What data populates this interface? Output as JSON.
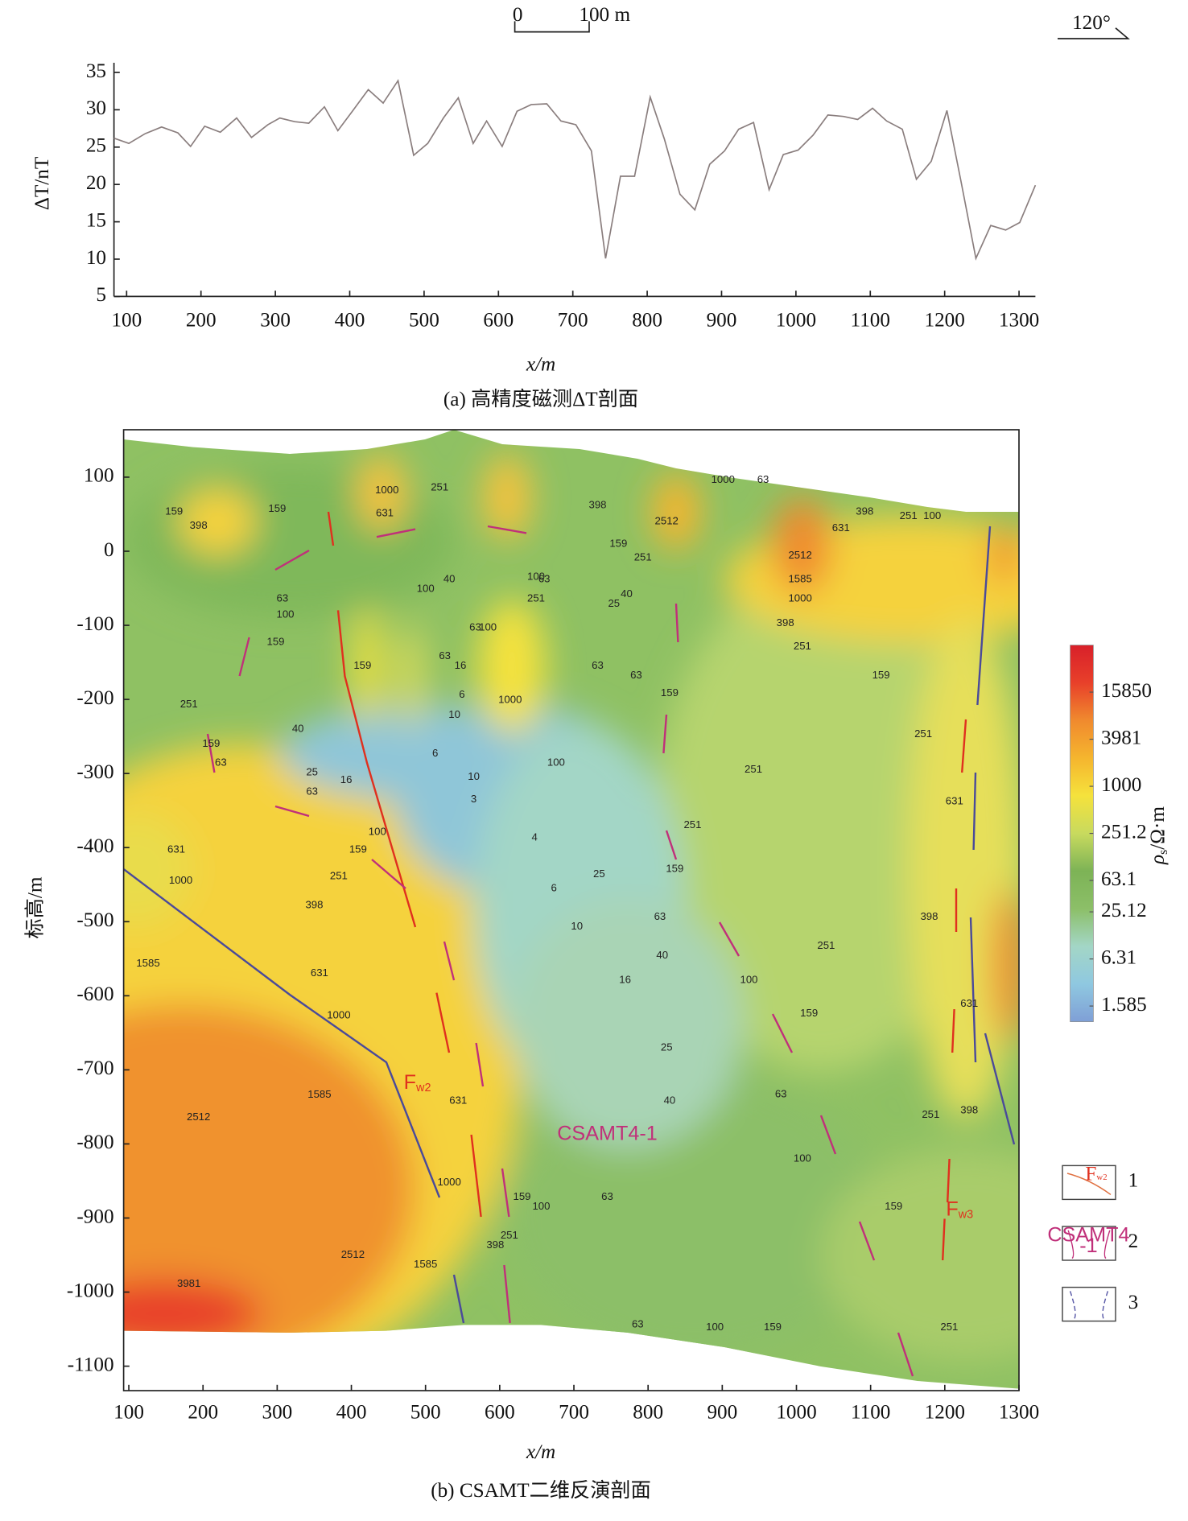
{
  "chart_data": [
    {
      "type": "line",
      "title": "(a) 高精度磁测ΔT剖面",
      "xlabel": "x/m",
      "ylabel": "ΔT/nT",
      "scale_bar": {
        "length": 100,
        "labels": [
          "0",
          "100 m"
        ]
      },
      "orientation_label": "120°",
      "color": "#8a7e7e",
      "xlim": [
        83,
        1322
      ],
      "ylim": [
        5,
        35
      ],
      "xticks": [
        100,
        200,
        300,
        400,
        500,
        600,
        700,
        800,
        900,
        1000,
        1100,
        1200,
        1300
      ],
      "yticks": [
        5,
        10,
        15,
        20,
        25,
        30,
        35
      ],
      "x": [
        83,
        103,
        125,
        147,
        169,
        186,
        205,
        226,
        248,
        268,
        290,
        306,
        326,
        345,
        366,
        384,
        405,
        425,
        445,
        465,
        486,
        505,
        526,
        546,
        566,
        584,
        605,
        625,
        644,
        665,
        684,
        704,
        725,
        744,
        764,
        783,
        804,
        823,
        844,
        864,
        884,
        904,
        923,
        943,
        964,
        983,
        1003,
        1023,
        1043,
        1064,
        1083,
        1103,
        1122,
        1143,
        1162,
        1182,
        1203,
        1222,
        1242,
        1262,
        1282,
        1301,
        1322
      ],
      "values": [
        26.2,
        25.5,
        26.8,
        27.7,
        26.9,
        25.1,
        27.8,
        27.0,
        28.9,
        26.3,
        28.0,
        28.9,
        28.4,
        28.2,
        30.4,
        27.2,
        30.0,
        32.7,
        30.9,
        33.9,
        23.9,
        25.5,
        28.9,
        31.6,
        25.5,
        28.5,
        25.1,
        29.8,
        30.7,
        30.8,
        28.5,
        28.0,
        24.5,
        10.1,
        21.1,
        21.1,
        31.7,
        26.1,
        18.7,
        16.6,
        22.7,
        24.5,
        27.4,
        28.3,
        19.3,
        24.0,
        24.6,
        26.6,
        29.3,
        29.1,
        28.7,
        30.2,
        28.5,
        27.4,
        20.7,
        23.1,
        29.9,
        20.4,
        10.1,
        14.5,
        13.9,
        14.9,
        19.9
      ]
    },
    {
      "type": "contour",
      "title": "(b) CSAMT二维反演剖面",
      "xlabel": "x/m",
      "ylabel": "标高/m",
      "xlim": [
        93,
        1300
      ],
      "ylim": [
        -1133,
        164
      ],
      "xticks": [
        100,
        200,
        300,
        400,
        500,
        600,
        700,
        800,
        900,
        1000,
        1100,
        1200,
        1300
      ],
      "yticks": [
        100,
        0,
        -100,
        -200,
        -300,
        -400,
        -500,
        -600,
        -700,
        -800,
        -900,
        -1000,
        -1100
      ],
      "colorbar": {
        "label": {
          "text": "ρ",
          "sub": "s",
          "rest": "/Ω·m"
        },
        "log": true,
        "lim": [
          1,
          63000
        ],
        "ticks": [
          15850,
          3981,
          1000,
          251.2,
          63.1,
          25.12,
          6.31,
          1.585
        ],
        "colors": [
          "#7f9fd6",
          "#8fc8e0",
          "#a3d6c6",
          "#8cbf68",
          "#7db356",
          "#c8da5e",
          "#f5e23c",
          "#f5b52e",
          "#f08a2e",
          "#e8402a",
          "#d8202a"
        ]
      },
      "annotations": [
        {
          "text": "F",
          "sub": "w2",
          "x": 489,
          "y": -718,
          "color": "#e0301e"
        },
        {
          "text": "F",
          "sub": "w3",
          "x": 1220,
          "y": -889,
          "color": "#e0301e"
        },
        {
          "text": "CSAMT4-1",
          "x": 745,
          "y": -787,
          "color": "#c0307a"
        }
      ],
      "legend": [
        {
          "label": "1",
          "sample": {
            "text": "F",
            "sub": "w2"
          }
        },
        {
          "label": "2",
          "sample": {
            "lines": [
              "CSAMT4",
              "-1"
            ]
          }
        },
        {
          "label": "3"
        }
      ],
      "contour_labels": [
        {
          "x": 164,
          "y": -403,
          "value": 631
        },
        {
          "x": 170,
          "y": -445,
          "value": 1000
        },
        {
          "x": 350,
          "y": -478,
          "value": 398
        },
        {
          "x": 383,
          "y": -439,
          "value": 251
        },
        {
          "x": 409,
          "y": -403,
          "value": 159
        },
        {
          "x": 435,
          "y": -379,
          "value": 100
        },
        {
          "x": 357,
          "y": -570,
          "value": 631
        },
        {
          "x": 383,
          "y": -627,
          "value": 1000
        },
        {
          "x": 357,
          "y": -734,
          "value": 1585
        },
        {
          "x": 194,
          "y": -764,
          "value": 2512
        },
        {
          "x": 402,
          "y": -950,
          "value": 2512
        },
        {
          "x": 181,
          "y": -989,
          "value": 3981
        },
        {
          "x": 126,
          "y": -557,
          "value": 1585
        },
        {
          "x": 532,
          "y": -852,
          "value": 1000
        },
        {
          "x": 500,
          "y": -963,
          "value": 1585
        },
        {
          "x": 544,
          "y": -742,
          "value": 631
        },
        {
          "x": 594,
          "y": -937,
          "value": 398
        },
        {
          "x": 613,
          "y": -924,
          "value": 251
        },
        {
          "x": 630,
          "y": -872,
          "value": 159
        },
        {
          "x": 656,
          "y": -885,
          "value": 100
        },
        {
          "x": 745,
          "y": -872,
          "value": 63
        },
        {
          "x": 829,
          "y": -742,
          "value": 40
        },
        {
          "x": 825,
          "y": -670,
          "value": 25
        },
        {
          "x": 769,
          "y": -579,
          "value": 16
        },
        {
          "x": 704,
          "y": -507,
          "value": 10
        },
        {
          "x": 673,
          "y": -455,
          "value": 6
        },
        {
          "x": 647,
          "y": -387,
          "value": 4
        },
        {
          "x": 565,
          "y": -335,
          "value": 3
        },
        {
          "x": 734,
          "y": -436,
          "value": 25
        },
        {
          "x": 819,
          "y": -546,
          "value": 40
        },
        {
          "x": 816,
          "y": -494,
          "value": 63
        },
        {
          "x": 936,
          "y": -579,
          "value": 100
        },
        {
          "x": 1017,
          "y": -624,
          "value": 159
        },
        {
          "x": 979,
          "y": -733,
          "value": 63
        },
        {
          "x": 1008,
          "y": -820,
          "value": 100
        },
        {
          "x": 1131,
          "y": -885,
          "value": 159
        },
        {
          "x": 1040,
          "y": -533,
          "value": 251
        },
        {
          "x": 942,
          "y": -295,
          "value": 251
        },
        {
          "x": 860,
          "y": -370,
          "value": 251
        },
        {
          "x": 836,
          "y": -429,
          "value": 159
        },
        {
          "x": 1179,
          "y": -494,
          "value": 398
        },
        {
          "x": 1213,
          "y": -338,
          "value": 631
        },
        {
          "x": 1233,
          "y": -611,
          "value": 631
        },
        {
          "x": 1233,
          "y": -755,
          "value": 398
        },
        {
          "x": 1181,
          "y": -761,
          "value": 251
        },
        {
          "x": 1206,
          "y": -1048,
          "value": 251
        },
        {
          "x": 890,
          "y": -1048,
          "value": 100
        },
        {
          "x": 786,
          "y": -1044,
          "value": 63
        },
        {
          "x": 968,
          "y": -1048,
          "value": 159
        },
        {
          "x": 1092,
          "y": 53,
          "value": 398
        },
        {
          "x": 1060,
          "y": 31,
          "value": 631
        },
        {
          "x": 1005,
          "y": -64,
          "value": 1000
        },
        {
          "x": 1005,
          "y": -38,
          "value": 1585
        },
        {
          "x": 1005,
          "y": -6,
          "value": 2512
        },
        {
          "x": 985,
          "y": -97,
          "value": 398
        },
        {
          "x": 1008,
          "y": -129,
          "value": 251
        },
        {
          "x": 1114,
          "y": -168,
          "value": 159
        },
        {
          "x": 1171,
          "y": -247,
          "value": 251
        },
        {
          "x": 732,
          "y": 62,
          "value": 398
        },
        {
          "x": 614,
          "y": -201,
          "value": 1000
        },
        {
          "x": 445,
          "y": 51,
          "value": 631
        },
        {
          "x": 448,
          "y": 82,
          "value": 1000
        },
        {
          "x": 519,
          "y": 86,
          "value": 251
        },
        {
          "x": 500,
          "y": -51,
          "value": 100
        },
        {
          "x": 532,
          "y": -38,
          "value": 40
        },
        {
          "x": 567,
          "y": -103,
          "value": 63
        },
        {
          "x": 547,
          "y": -155,
          "value": 16
        },
        {
          "x": 549,
          "y": -194,
          "value": 6
        },
        {
          "x": 539,
          "y": -221,
          "value": 10
        },
        {
          "x": 584,
          "y": -103,
          "value": 100
        },
        {
          "x": 732,
          "y": -155,
          "value": 63
        },
        {
          "x": 784,
          "y": -168,
          "value": 63
        },
        {
          "x": 829,
          "y": -192,
          "value": 159
        },
        {
          "x": 676,
          "y": -286,
          "value": 100
        },
        {
          "x": 660,
          "y": -38,
          "value": 63
        },
        {
          "x": 771,
          "y": -58,
          "value": 40
        },
        {
          "x": 754,
          "y": -71,
          "value": 25
        },
        {
          "x": 760,
          "y": 10,
          "value": 159
        },
        {
          "x": 793,
          "y": -9,
          "value": 251
        },
        {
          "x": 649,
          "y": -35,
          "value": 100
        },
        {
          "x": 649,
          "y": -64,
          "value": 251
        },
        {
          "x": 526,
          "y": -142,
          "value": 63
        },
        {
          "x": 415,
          "y": -155,
          "value": 159
        },
        {
          "x": 181,
          "y": -207,
          "value": 251
        },
        {
          "x": 211,
          "y": -260,
          "value": 159
        },
        {
          "x": 224,
          "y": -286,
          "value": 63
        },
        {
          "x": 328,
          "y": -240,
          "value": 40
        },
        {
          "x": 347,
          "y": -299,
          "value": 25
        },
        {
          "x": 347,
          "y": -325,
          "value": 63
        },
        {
          "x": 393,
          "y": -309,
          "value": 16
        },
        {
          "x": 513,
          "y": -273,
          "value": 6
        },
        {
          "x": 565,
          "y": -305,
          "value": 10
        },
        {
          "x": 161,
          "y": 53,
          "value": 159
        },
        {
          "x": 194,
          "y": 34,
          "value": 398
        },
        {
          "x": 307,
          "y": -64,
          "value": 63
        },
        {
          "x": 298,
          "y": -123,
          "value": 159
        },
        {
          "x": 311,
          "y": -86,
          "value": 100
        },
        {
          "x": 300,
          "y": 57,
          "value": 159
        },
        {
          "x": 955,
          "y": 96,
          "value": 63
        },
        {
          "x": 901,
          "y": 96,
          "value": 1000
        },
        {
          "x": 1151,
          "y": 47,
          "value": 251
        },
        {
          "x": 1183,
          "y": 47,
          "value": 100
        },
        {
          "x": 825,
          "y": 40,
          "value": 2512
        }
      ]
    }
  ]
}
